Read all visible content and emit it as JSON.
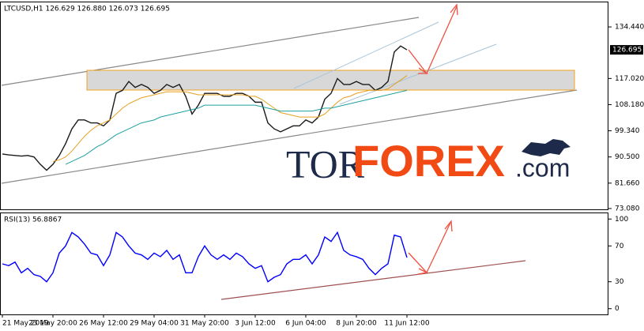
{
  "chart_data": [
    {
      "type": "line",
      "title": "LTCUSD,H1 126.629 126.880 126.073 126.695",
      "categories": [
        "21 May 2019",
        null,
        null,
        null,
        null,
        null,
        null,
        null,
        "23 May 20:00",
        null,
        null,
        null,
        null,
        null,
        null,
        null,
        "26 May 12:00",
        null,
        null,
        null,
        null,
        null,
        null,
        null,
        "29 May 04:00",
        null,
        null,
        null,
        null,
        null,
        null,
        null,
        "31 May 20:00",
        null,
        null,
        null,
        null,
        null,
        null,
        null,
        "3 Jun 12:00",
        null,
        null,
        null,
        null,
        null,
        null,
        null,
        "6 Jun 04:00",
        null,
        null,
        null,
        null,
        null,
        null,
        null,
        "8 Jun 20:00",
        null,
        null,
        null,
        null,
        null,
        null,
        null,
        "11 Jun 12:00"
      ],
      "series": [
        {
          "color": "#1a1a1a",
          "values": [
            91.5,
            91.2,
            91.0,
            90.8,
            91.0,
            90.5,
            88.0,
            86.0,
            88.0,
            91.0,
            95.0,
            100.0,
            103.0,
            103.0,
            102.0,
            102.0,
            101.0,
            103.0,
            112.0,
            113.0,
            116.0,
            114.0,
            115.0,
            114.0,
            112.0,
            113.0,
            115.0,
            114.0,
            115.0,
            111.0,
            105.0,
            108.0,
            112.0,
            112.0,
            112.0,
            111.0,
            111.0,
            112.0,
            112.0,
            111.0,
            109.0,
            109.0,
            102.0,
            100.0,
            99.0,
            100.0,
            101.0,
            101.0,
            103.0,
            102.0,
            104.0,
            110.0,
            112.0,
            117.0,
            115.0,
            115.0,
            116.0,
            115.0,
            115.0,
            113.0,
            114.0,
            116.0,
            126.0,
            128.0,
            126.695
          ]
        },
        {
          "color": "#e6a020",
          "values": [
            null,
            null,
            null,
            null,
            null,
            null,
            null,
            null,
            89.0,
            89.5,
            90.5,
            92.5,
            95.0,
            97.5,
            99.5,
            101.0,
            102.0,
            103.0,
            105.0,
            107.0,
            108.5,
            109.5,
            110.5,
            111.0,
            111.5,
            112.0,
            112.5,
            112.5,
            112.5,
            112.5,
            112.0,
            111.5,
            111.5,
            111.5,
            111.5,
            111.5,
            111.5,
            111.5,
            111.5,
            111.0,
            111.0,
            110.0,
            108.5,
            107.0,
            105.5,
            105.0,
            104.5,
            104.0,
            104.0,
            104.0,
            104.0,
            105.0,
            107.0,
            109.0,
            110.5,
            111.0,
            112.0,
            112.5,
            113.0,
            113.0,
            113.0,
            113.5,
            115.0,
            116.5,
            118.0
          ]
        },
        {
          "color": "#20a0a0",
          "values": [
            null,
            null,
            null,
            null,
            null,
            null,
            null,
            null,
            null,
            null,
            88.0,
            89.0,
            90.0,
            91.0,
            92.5,
            94.0,
            95.0,
            96.5,
            98.0,
            99.0,
            100.0,
            101.0,
            102.0,
            102.5,
            103.0,
            104.0,
            104.5,
            105.0,
            105.5,
            106.0,
            106.5,
            107.0,
            108.0,
            108.0,
            108.0,
            108.0,
            108.0,
            108.0,
            108.0,
            108.0,
            108.0,
            107.5,
            107.0,
            106.5,
            106.0,
            106.0,
            106.0,
            106.0,
            106.0,
            106.0,
            106.5,
            107.0,
            107.0,
            107.5,
            108.0,
            108.5,
            109.0,
            109.5,
            110.0,
            110.5,
            111.0,
            111.5,
            112.0,
            112.5,
            113.0
          ]
        }
      ],
      "last_price": 126.695,
      "ylim": [
        72.8,
        143.0
      ],
      "yticks": [
        {
          "value": 134.44,
          "label": "134.440"
        },
        {
          "value": 117.02,
          "label": "117.020"
        },
        {
          "value": 108.18,
          "label": "108.180"
        },
        {
          "value": 99.34,
          "label": "99.340"
        },
        {
          "value": 90.5,
          "label": "90.500"
        },
        {
          "value": 81.66,
          "label": "81.660"
        },
        {
          "value": 73.08,
          "label": "73.080"
        }
      ]
    },
    {
      "type": "line",
      "title": "RSI(13) 56.8867",
      "series": [
        {
          "color": "#0000ff",
          "values": [
            50,
            48,
            52,
            40,
            45,
            38,
            36,
            30,
            40,
            62,
            70,
            85,
            80,
            72,
            62,
            60,
            48,
            60,
            85,
            80,
            70,
            62,
            60,
            55,
            62,
            58,
            65,
            55,
            60,
            40,
            40,
            58,
            70,
            60,
            55,
            60,
            55,
            62,
            58,
            50,
            45,
            48,
            30,
            35,
            38,
            50,
            55,
            55,
            60,
            50,
            60,
            80,
            75,
            85,
            65,
            60,
            58,
            55,
            45,
            38,
            45,
            50,
            82,
            80,
            57
          ]
        }
      ],
      "ylim": [
        -6.4,
        106.4
      ],
      "yticks": [
        100,
        70,
        30,
        0
      ]
    }
  ],
  "watermark": [
    "TOR",
    "FOREX",
    ".com"
  ]
}
